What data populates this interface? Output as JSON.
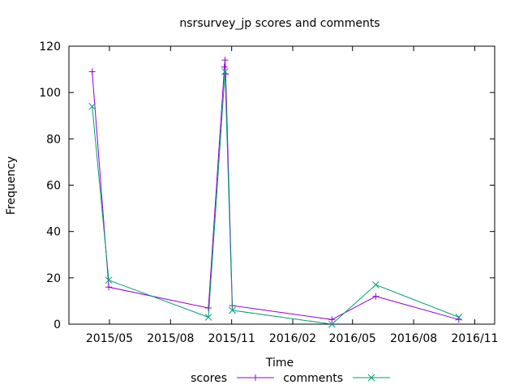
{
  "chart_data": {
    "type": "line",
    "title": "nsrsurvey_jp scores and comments",
    "xlabel": "Time",
    "ylabel": "Frequency",
    "ylim": [
      0,
      120
    ],
    "y_ticks": [
      0,
      20,
      40,
      60,
      80,
      100,
      120
    ],
    "xlim": [
      "2015-03-01",
      "2016-12-01"
    ],
    "x_ticks": [
      "2015-05-01",
      "2015-08-01",
      "2015-11-01",
      "2016-02-01",
      "2016-05-01",
      "2016-08-01",
      "2016-11-01"
    ],
    "x_tick_labels": [
      "2015/05",
      "2015/08",
      "2015/11",
      "2016/02",
      "2016/05",
      "2016/08",
      "2016/11"
    ],
    "grid": false,
    "legend_position": "bottom-center",
    "series": [
      {
        "name": "scores",
        "color": "#9400d3",
        "marker": "plus",
        "points": [
          [
            "2015-04-05",
            109
          ],
          [
            "2015-04-30",
            16
          ],
          [
            "2015-09-27",
            7
          ],
          [
            "2015-10-21",
            111
          ],
          [
            "2015-10-22",
            114
          ],
          [
            "2015-10-23",
            108
          ],
          [
            "2015-11-02",
            8
          ],
          [
            "2016-03-31",
            2
          ],
          [
            "2016-06-05",
            12
          ],
          [
            "2016-10-08",
            2
          ]
        ]
      },
      {
        "name": "comments",
        "color": "#009e73",
        "marker": "cross",
        "points": [
          [
            "2015-04-05",
            94
          ],
          [
            "2015-04-30",
            19
          ],
          [
            "2015-09-27",
            3
          ],
          [
            "2015-10-22",
            109
          ],
          [
            "2015-11-02",
            6
          ],
          [
            "2016-03-31",
            0
          ],
          [
            "2016-06-05",
            17
          ],
          [
            "2016-10-08",
            3
          ]
        ]
      }
    ]
  }
}
